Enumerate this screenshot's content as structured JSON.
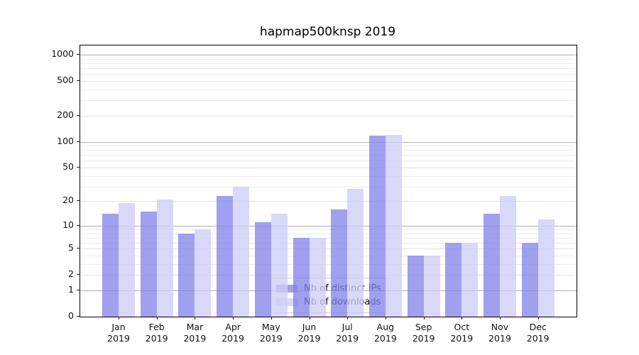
{
  "chart_data": {
    "type": "bar",
    "title": "hapmap500knsp 2019",
    "categories": [
      "Jan",
      "Feb",
      "Mar",
      "Apr",
      "May",
      "Jun",
      "Jul",
      "Aug",
      "Sep",
      "Oct",
      "Nov",
      "Dec"
    ],
    "x_year_label": "2019",
    "series": [
      {
        "name": "Nb of distinct IPs",
        "values": [
          14,
          15,
          8,
          23,
          11,
          7,
          16,
          117,
          4,
          6,
          14,
          6
        ],
        "color": "rgba(128,128,232,0.75)"
      },
      {
        "name": "Nb of downloads",
        "values": [
          19,
          21,
          9,
          30,
          14,
          7,
          28,
          120,
          4,
          6,
          23,
          12
        ],
        "color": "rgba(205,205,246,0.78)"
      }
    ],
    "yscale": "log1p",
    "ylim": [
      0,
      1274
    ],
    "yticks": [
      0,
      1,
      2,
      5,
      10,
      20,
      50,
      100,
      200,
      500,
      1000
    ],
    "yticks_strong": [
      1,
      10,
      100,
      1000
    ],
    "yticks_minor": [
      3,
      4,
      6,
      7,
      8,
      9,
      30,
      40,
      60,
      70,
      80,
      90,
      300,
      400,
      600,
      700,
      800,
      900
    ],
    "grid": true,
    "legend": {
      "location": "lower center"
    },
    "colors": {
      "grid_strong": "#b0b0b0",
      "grid_weak": "#e2e2e2",
      "grid_minor": "#ebebeb",
      "spine": "#000000",
      "tick": "#222222",
      "text": "#111111"
    }
  }
}
